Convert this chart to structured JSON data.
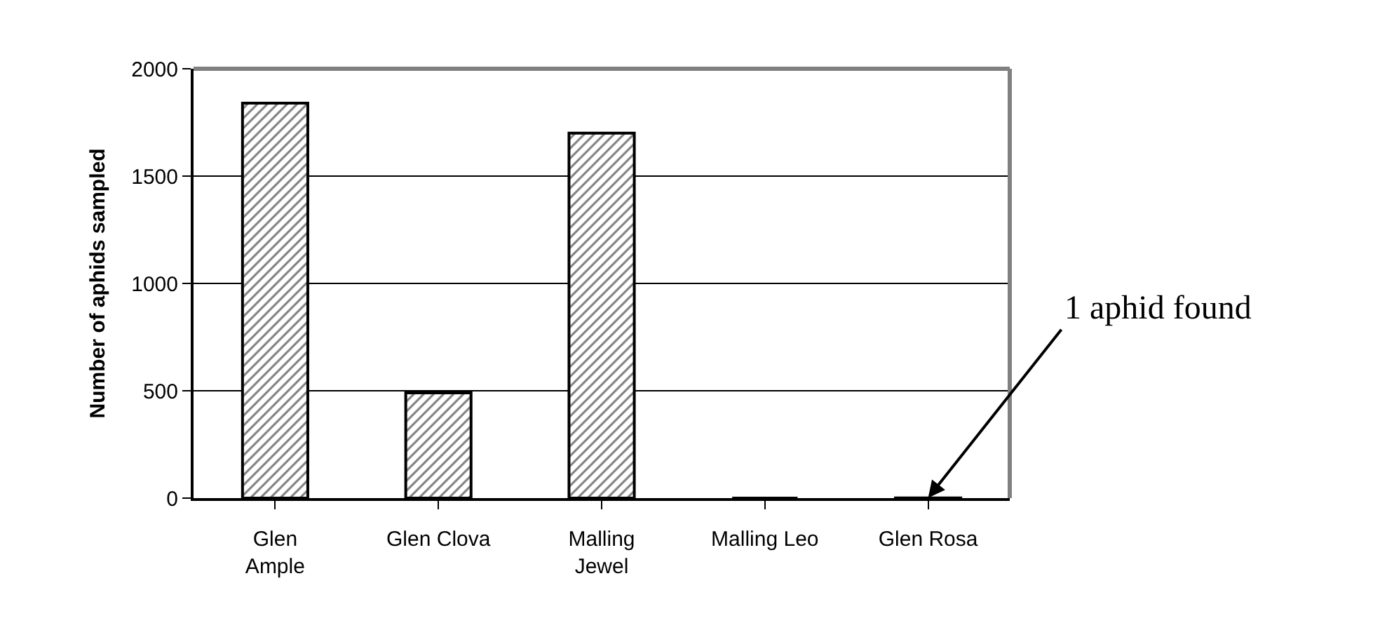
{
  "chart_data": {
    "type": "bar",
    "ylabel": "Number of aphids sampled",
    "categories": [
      "Glen\nAmple",
      "Glen Clova",
      "Malling\nJewel",
      "Malling Leo",
      "Glen Rosa"
    ],
    "values": [
      1840,
      490,
      1700,
      0,
      1
    ],
    "color": "#000000",
    "ylim": [
      0,
      2000
    ],
    "yticks": [
      0,
      500,
      1000,
      1500,
      2000
    ],
    "grid": "y",
    "annotations": [
      {
        "text": "1 aphid found",
        "x": "Glen Rosa",
        "y": 1
      }
    ]
  }
}
